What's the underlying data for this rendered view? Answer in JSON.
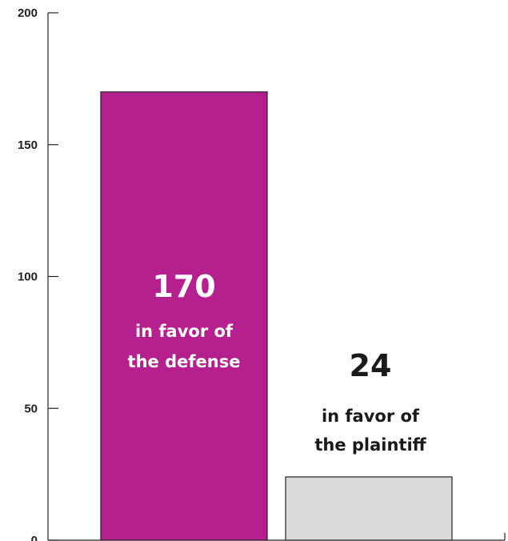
{
  "chart_data": {
    "type": "bar",
    "categories": [
      "in favor of the defense",
      "in favor of the plaintiff"
    ],
    "values": [
      170,
      24
    ],
    "ylim": [
      0,
      200
    ],
    "yticks": [
      0,
      50,
      100,
      150,
      200
    ],
    "grid": false,
    "legend": "none",
    "bars": [
      {
        "value_text": "170",
        "caption_lines": [
          "in favor of",
          "the defense"
        ],
        "color": "#b51f8e",
        "text_color": "#ffffff"
      },
      {
        "value_text": "24",
        "caption_lines": [
          "in favor of",
          "the plaintiff"
        ],
        "color": "#d9d9d9",
        "text_color": "#1a1a1a"
      }
    ]
  },
  "colors": {
    "axis": "#222222",
    "bar_outline": "#222222"
  }
}
